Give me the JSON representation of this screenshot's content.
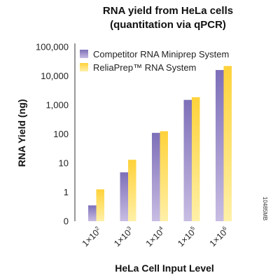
{
  "chart_data": {
    "type": "bar",
    "title": "RNA yield from HeLa cells",
    "subtitle": "(quantitation via qPCR)",
    "xlabel": "HeLa Cell Input Level",
    "ylabel": "RNA Yield (ng)",
    "y_scale": "log",
    "y_ticks": [
      "0",
      "1",
      "10",
      "100",
      "1,000",
      "10,000",
      "100,000"
    ],
    "categories": [
      {
        "base": "1×10",
        "exp": "2"
      },
      {
        "base": "1×10",
        "exp": "3"
      },
      {
        "base": "1×10",
        "exp": "4"
      },
      {
        "base": "1×10",
        "exp": "5"
      },
      {
        "base": "1×10",
        "exp": "6"
      }
    ],
    "series": [
      {
        "name": "Competitor RNA Miniprep System",
        "color": "#8c7fc0",
        "values": [
          0.35,
          4.8,
          110,
          1500,
          16000
        ]
      },
      {
        "name": "ReliaPrep™ RNA System",
        "color": "#fbd34d",
        "values": [
          1.25,
          13,
          125,
          1850,
          22000
        ]
      }
    ],
    "legend_position": "top-left",
    "grid": false,
    "code": "10485MB"
  }
}
